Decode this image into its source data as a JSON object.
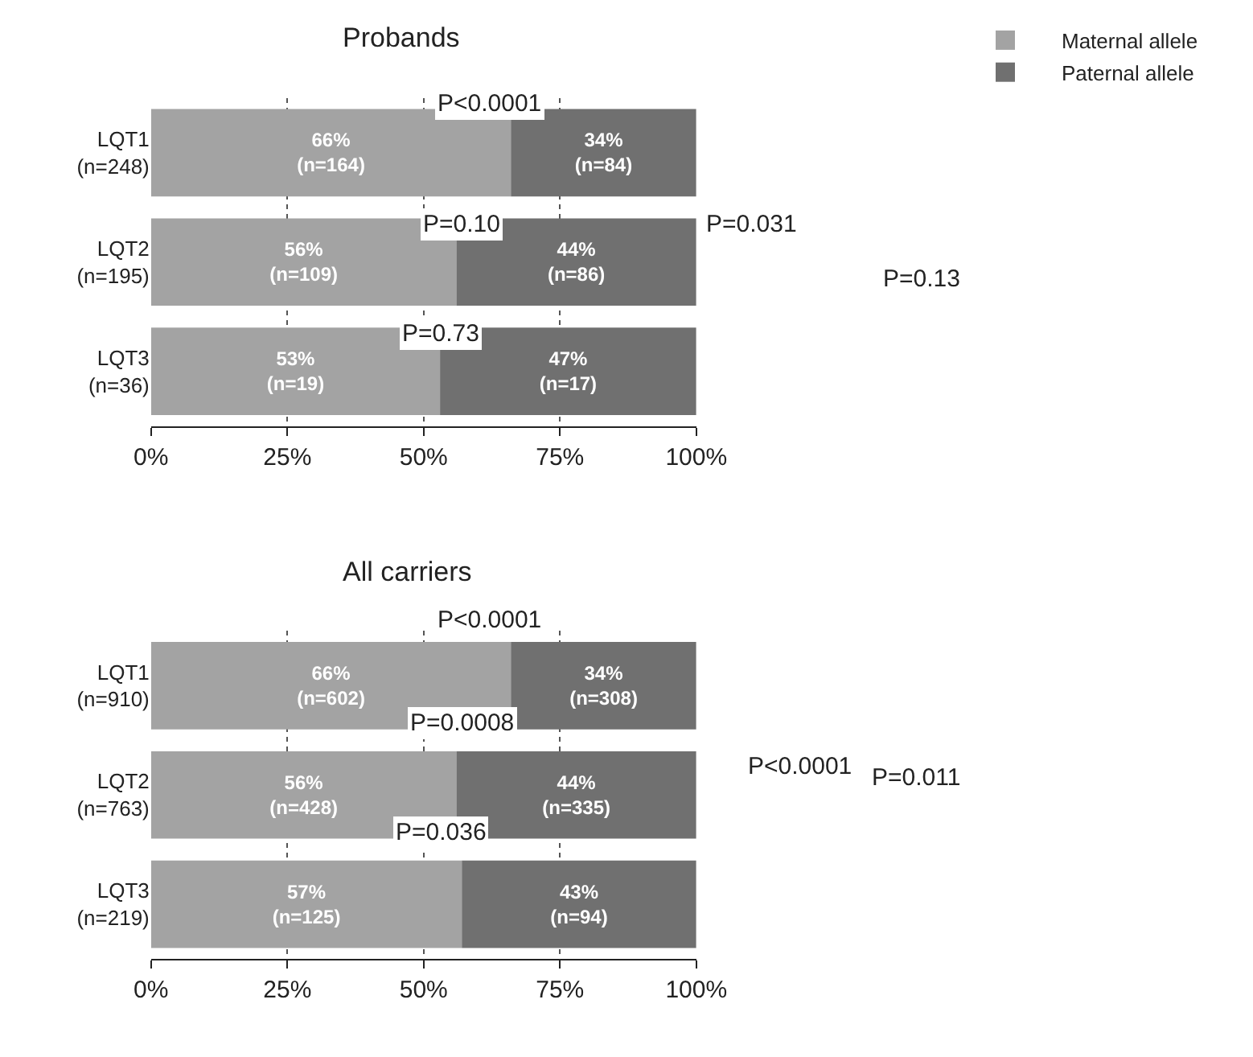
{
  "chart_data": [
    {
      "type": "bar",
      "title": "Probands",
      "orientation": "horizontal",
      "stacked": true,
      "legend": "top right",
      "grid": "x",
      "categories": [
        "LQT1\n(n=248)",
        "LQT2\n(n=195)",
        "LQT3\n(n=36)"
      ],
      "series": [
        {
          "name": "Maternal allele",
          "color": "#a3a3a3",
          "values": [
            66,
            56,
            53
          ],
          "value_labels": [
            "66%\n(n=164)",
            "56%\n(n=109)",
            "53%\n(n=19)"
          ]
        },
        {
          "name": "Paternal allele",
          "color": "#707070",
          "values": [
            34,
            44,
            47
          ],
          "value_labels": [
            "34%\n(n=84)",
            "44%\n(n=86)",
            "47%\n(n=17)"
          ]
        }
      ],
      "xlim": [
        0,
        100
      ],
      "xticks": [
        {
          "value": 0,
          "label": "0%"
        },
        {
          "value": 25,
          "label": "25%"
        },
        {
          "value": 50,
          "label": "50%"
        },
        {
          "value": 75,
          "label": "75%"
        },
        {
          "value": 100,
          "label": "100%"
        }
      ],
      "annotations": [
        "P<0.0001",
        "P=0.10",
        "P=0.73",
        "P=0.031",
        "P=0.13"
      ]
    },
    {
      "type": "bar",
      "title": "All carriers",
      "orientation": "horizontal",
      "stacked": true,
      "legend": false,
      "grid": "x",
      "categories": [
        "LQT1\n(n=910)",
        "LQT2\n(n=763)",
        "LQT3\n(n=219)"
      ],
      "series": [
        {
          "color": "#a3a3a3",
          "values": [
            66,
            56,
            57
          ],
          "value_labels": [
            "66%\n(n=602)",
            "56%\n(n=428)",
            "57%\n(n=125)"
          ]
        },
        {
          "color": "#707070",
          "values": [
            34,
            44,
            43
          ],
          "value_labels": [
            "34%\n(n=308)",
            "44%\n(n=335)",
            "43%\n(n=94)"
          ]
        }
      ],
      "xlim": [
        0,
        100
      ],
      "xticks": [
        {
          "value": 0,
          "label": "0%"
        },
        {
          "value": 25,
          "label": "25%"
        },
        {
          "value": 50,
          "label": "50%"
        },
        {
          "value": 75,
          "label": "75%"
        },
        {
          "value": 100,
          "label": "100%"
        }
      ],
      "annotations": [
        "P<0.0001",
        "P=0.0008",
        "P=0.036",
        "P<0.0001",
        "P=0.011"
      ]
    }
  ]
}
